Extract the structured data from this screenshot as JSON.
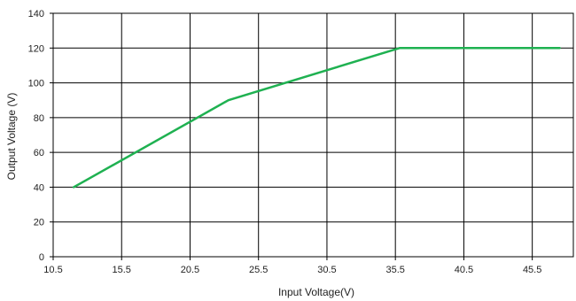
{
  "colors": {
    "series": "#1fb151",
    "grid": "#000000",
    "background": "#ffffff"
  },
  "chart_data": {
    "type": "line",
    "title": "",
    "xlabel": "Input Voltage(V)",
    "ylabel": "Output Voltage (V)",
    "xlim": [
      10.5,
      48.5
    ],
    "ylim": [
      0,
      140
    ],
    "xticks": [
      10.5,
      15.5,
      20.5,
      25.5,
      30.5,
      35.5,
      40.5,
      45.5
    ],
    "xtick_labels": [
      "10.5",
      "15.5",
      "20.5",
      "25.5",
      "30.5",
      "35.5",
      "40.5",
      "45.5"
    ],
    "yticks": [
      0,
      20,
      40,
      60,
      80,
      100,
      120,
      140
    ],
    "ytick_labels": [
      "0",
      "20",
      "40",
      "60",
      "80",
      "100",
      "120",
      "140"
    ],
    "grid": true,
    "legend": "none",
    "series": [
      {
        "points": [
          {
            "x": 12.0,
            "y": 40
          },
          {
            "x": 23.3,
            "y": 90
          },
          {
            "x": 35.8,
            "y": 120
          },
          {
            "x": 47.5,
            "y": 120
          }
        ]
      }
    ]
  }
}
